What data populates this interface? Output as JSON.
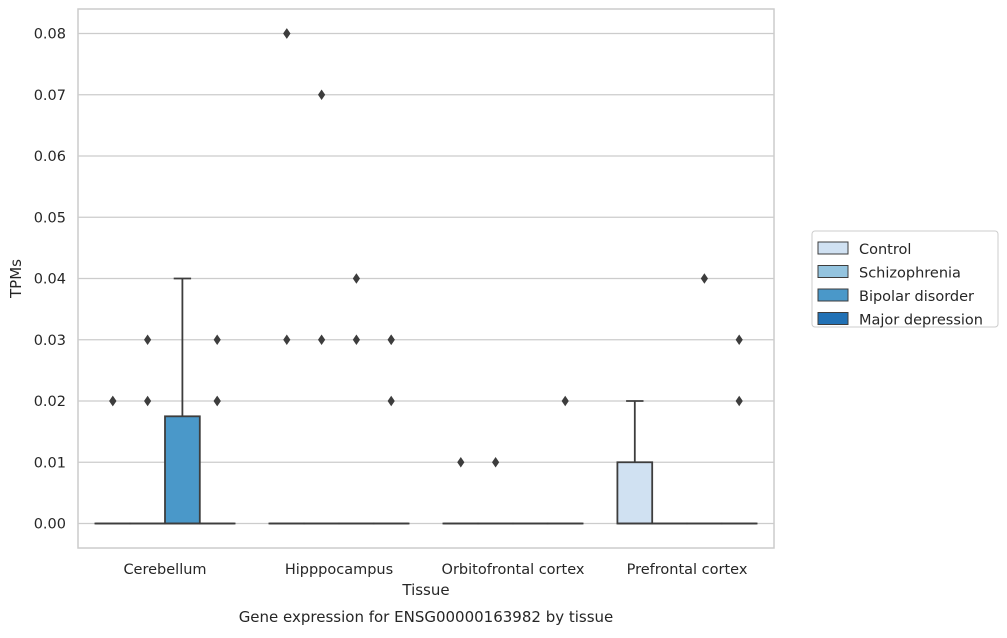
{
  "chart_data": {
    "type": "box",
    "title": "",
    "caption": "Gene expression for ENSG00000163982 by tissue",
    "xlabel": "Tissue",
    "ylabel": "TPMs",
    "categories": [
      "Cerebellum",
      "Hipppocampus",
      "Orbitofrontal cortex",
      "Prefrontal cortex"
    ],
    "yticks": [
      "0.00",
      "0.01",
      "0.02",
      "0.03",
      "0.04",
      "0.05",
      "0.06",
      "0.07",
      "0.08"
    ],
    "ylim": [
      -0.004,
      0.084
    ],
    "grid": "horizontal",
    "legend_position": "right",
    "series": [
      {
        "name": "Control",
        "color": "#d0e1f2",
        "boxes": [
          {
            "category": "Cerebellum",
            "q1": 0,
            "median": 0,
            "q3": 0,
            "whisker_low": 0,
            "whisker_high": 0,
            "outliers": [
              0.02,
              0.02
            ]
          },
          {
            "category": "Hipppocampus",
            "q1": 0,
            "median": 0,
            "q3": 0,
            "whisker_low": 0,
            "whisker_high": 0,
            "outliers": [
              0.08,
              0.08,
              0.03
            ]
          },
          {
            "category": "Orbitofrontal cortex",
            "q1": 0,
            "median": 0,
            "q3": 0,
            "whisker_low": 0,
            "whisker_high": 0,
            "outliers": [
              0.01
            ]
          },
          {
            "category": "Prefrontal cortex",
            "q1": 0,
            "median": 0,
            "q3": 0.01,
            "whisker_low": 0,
            "whisker_high": 0.02,
            "outliers": []
          }
        ]
      },
      {
        "name": "Schizophrenia",
        "color": "#94c4df",
        "boxes": [
          {
            "category": "Cerebellum",
            "q1": 0,
            "median": 0,
            "q3": 0,
            "whisker_low": 0,
            "whisker_high": 0,
            "outliers": [
              0.03,
              0.02
            ]
          },
          {
            "category": "Hipppocampus",
            "q1": 0,
            "median": 0,
            "q3": 0,
            "whisker_low": 0,
            "whisker_high": 0,
            "outliers": [
              0.07,
              0.03
            ]
          },
          {
            "category": "Orbitofrontal cortex",
            "q1": 0,
            "median": 0,
            "q3": 0,
            "whisker_low": 0,
            "whisker_high": 0,
            "outliers": [
              0.01
            ]
          },
          {
            "category": "Prefrontal cortex",
            "q1": 0,
            "median": 0,
            "q3": 0,
            "whisker_low": 0,
            "whisker_high": 0,
            "outliers": []
          }
        ]
      },
      {
        "name": "Bipolar disorder",
        "color": "#4a98c9",
        "boxes": [
          {
            "category": "Cerebellum",
            "q1": 0,
            "median": 0,
            "q3": 0.0175,
            "whisker_low": 0,
            "whisker_high": 0.04,
            "outliers": []
          },
          {
            "category": "Hipppocampus",
            "q1": 0,
            "median": 0,
            "q3": 0,
            "whisker_low": 0,
            "whisker_high": 0,
            "outliers": [
              0.04,
              0.03
            ]
          },
          {
            "category": "Orbitofrontal cortex",
            "q1": 0,
            "median": 0,
            "q3": 0,
            "whisker_low": 0,
            "whisker_high": 0,
            "outliers": []
          },
          {
            "category": "Prefrontal cortex",
            "q1": 0,
            "median": 0,
            "q3": 0,
            "whisker_low": 0,
            "whisker_high": 0,
            "outliers": [
              0.04
            ]
          }
        ]
      },
      {
        "name": "Major depression",
        "color": "#2171b5",
        "boxes": [
          {
            "category": "Cerebellum",
            "q1": 0,
            "median": 0,
            "q3": 0,
            "whisker_low": 0,
            "whisker_high": 0,
            "outliers": [
              0.03,
              0.02,
              0.02
            ]
          },
          {
            "category": "Hipppocampus",
            "q1": 0,
            "median": 0,
            "q3": 0,
            "whisker_low": 0,
            "whisker_high": 0,
            "outliers": [
              0.03,
              0.03,
              0.02
            ]
          },
          {
            "category": "Orbitofrontal cortex",
            "q1": 0,
            "median": 0,
            "q3": 0,
            "whisker_low": 0,
            "whisker_high": 0,
            "outliers": [
              0.02
            ]
          },
          {
            "category": "Prefrontal cortex",
            "q1": 0,
            "median": 0,
            "q3": 0,
            "whisker_low": 0,
            "whisker_high": 0,
            "outliers": [
              0.03,
              0.02
            ]
          }
        ]
      }
    ]
  }
}
